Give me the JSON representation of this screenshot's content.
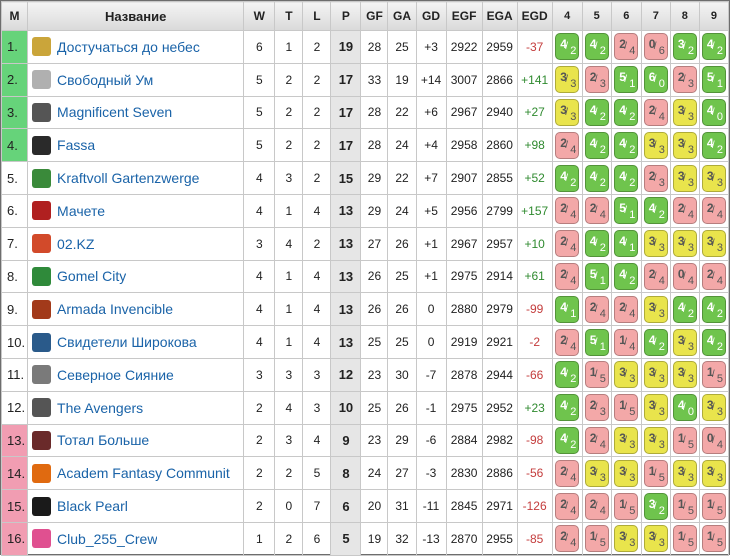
{
  "header": {
    "pos": "M",
    "name": "Название",
    "w": "W",
    "t": "T",
    "l": "L",
    "p": "P",
    "gf": "GF",
    "ga": "GA",
    "gd": "GD",
    "egf": "EGF",
    "ega": "EGA",
    "egd": "EGD",
    "rounds": [
      "4",
      "5",
      "6",
      "7",
      "8",
      "9"
    ]
  },
  "colors": {
    "promotion": "#66d37a",
    "relegation": "#f19db2",
    "cell_win": "#6fc44d",
    "cell_draw": "#e9e44c",
    "cell_loss": "#f3a8a8",
    "link": "#1a63a8"
  },
  "rows": [
    {
      "pos": "1.",
      "zone": "green",
      "logo": "laurel-logo-icon",
      "logo_color": "#caa53a",
      "name": "Достучаться до небес",
      "w": "6",
      "t": "1",
      "l": "2",
      "p": "19",
      "gf": "28",
      "ga": "25",
      "gd": "+3",
      "egf": "2922",
      "ega": "2959",
      "egd": "-37",
      "cells": [
        {
          "a": "4",
          "b": "2",
          "c": "g"
        },
        {
          "a": "4",
          "b": "2",
          "c": "g"
        },
        {
          "a": "2",
          "b": "4",
          "c": "r"
        },
        {
          "a": "0",
          "b": "6",
          "c": "r"
        },
        {
          "a": "3",
          "b": "2",
          "c": "g"
        },
        {
          "a": "4",
          "b": "2",
          "c": "g"
        }
      ]
    },
    {
      "pos": "2.",
      "zone": "green",
      "logo": "brain-logo-icon",
      "logo_color": "#b0b0b0",
      "name": "Свободный Ум",
      "w": "5",
      "t": "2",
      "l": "2",
      "p": "17",
      "gf": "33",
      "ga": "19",
      "gd": "+14",
      "egf": "3007",
      "ega": "2866",
      "egd": "+141",
      "cells": [
        {
          "a": "3",
          "b": "3",
          "c": "y"
        },
        {
          "a": "2",
          "b": "3",
          "c": "r"
        },
        {
          "a": "5",
          "b": "1",
          "c": "g"
        },
        {
          "a": "6",
          "b": "0",
          "c": "g"
        },
        {
          "a": "2",
          "b": "3",
          "c": "r"
        },
        {
          "a": "5",
          "b": "1",
          "c": "g"
        }
      ]
    },
    {
      "pos": "3.",
      "zone": "green",
      "logo": "group-photo-logo-icon",
      "logo_color": "#555555",
      "name": "Magnificent Seven",
      "w": "5",
      "t": "2",
      "l": "2",
      "p": "17",
      "gf": "28",
      "ga": "22",
      "gd": "+6",
      "egf": "2967",
      "ega": "2940",
      "egd": "+27",
      "cells": [
        {
          "a": "3",
          "b": "3",
          "c": "y"
        },
        {
          "a": "4",
          "b": "2",
          "c": "g"
        },
        {
          "a": "4",
          "b": "2",
          "c": "g"
        },
        {
          "a": "2",
          "b": "4",
          "c": "r"
        },
        {
          "a": "3",
          "b": "3",
          "c": "y"
        },
        {
          "a": "4",
          "b": "0",
          "c": "g"
        }
      ]
    },
    {
      "pos": "4.",
      "zone": "green",
      "logo": "fassa-logo-icon",
      "logo_color": "#2a2a2a",
      "name": "Fassa",
      "w": "5",
      "t": "2",
      "l": "2",
      "p": "17",
      "gf": "28",
      "ga": "24",
      "gd": "+4",
      "egf": "2958",
      "ega": "2860",
      "egd": "+98",
      "cells": [
        {
          "a": "2",
          "b": "4",
          "c": "r"
        },
        {
          "a": "4",
          "b": "2",
          "c": "g"
        },
        {
          "a": "4",
          "b": "2",
          "c": "g"
        },
        {
          "a": "3",
          "b": "3",
          "c": "y"
        },
        {
          "a": "3",
          "b": "3",
          "c": "y"
        },
        {
          "a": "4",
          "b": "2",
          "c": "g"
        }
      ]
    },
    {
      "pos": "5.",
      "zone": "plain",
      "logo": "gnome-logo-icon",
      "logo_color": "#3a8a3a",
      "name": "Kraftvoll Gartenzwerge",
      "w": "4",
      "t": "3",
      "l": "2",
      "p": "15",
      "gf": "29",
      "ga": "22",
      "gd": "+7",
      "egf": "2907",
      "ega": "2855",
      "egd": "+52",
      "cells": [
        {
          "a": "4",
          "b": "2",
          "c": "g"
        },
        {
          "a": "4",
          "b": "2",
          "c": "g"
        },
        {
          "a": "4",
          "b": "2",
          "c": "g"
        },
        {
          "a": "2",
          "b": "3",
          "c": "r"
        },
        {
          "a": "3",
          "b": "3",
          "c": "y"
        },
        {
          "a": "3",
          "b": "3",
          "c": "y"
        }
      ]
    },
    {
      "pos": "6.",
      "zone": "plain",
      "logo": "machete-logo-icon",
      "logo_color": "#b02020",
      "name": "Мачете",
      "w": "4",
      "t": "1",
      "l": "4",
      "p": "13",
      "gf": "29",
      "ga": "24",
      "gd": "+5",
      "egf": "2956",
      "ega": "2799",
      "egd": "+157",
      "cells": [
        {
          "a": "2",
          "b": "4",
          "c": "r"
        },
        {
          "a": "2",
          "b": "4",
          "c": "r"
        },
        {
          "a": "5",
          "b": "1",
          "c": "g"
        },
        {
          "a": "4",
          "b": "2",
          "c": "g"
        },
        {
          "a": "2",
          "b": "4",
          "c": "r"
        },
        {
          "a": "2",
          "b": "4",
          "c": "r"
        }
      ]
    },
    {
      "pos": "7.",
      "zone": "plain",
      "logo": "kz-logo-icon",
      "logo_color": "#d24a2a",
      "name": "02.KZ",
      "w": "3",
      "t": "4",
      "l": "2",
      "p": "13",
      "gf": "27",
      "ga": "26",
      "gd": "+1",
      "egf": "2967",
      "ega": "2957",
      "egd": "+10",
      "cells": [
        {
          "a": "2",
          "b": "4",
          "c": "r"
        },
        {
          "a": "4",
          "b": "2",
          "c": "g"
        },
        {
          "a": "4",
          "b": "1",
          "c": "g"
        },
        {
          "a": "3",
          "b": "3",
          "c": "y"
        },
        {
          "a": "3",
          "b": "3",
          "c": "y"
        },
        {
          "a": "3",
          "b": "3",
          "c": "y"
        }
      ]
    },
    {
      "pos": "8.",
      "zone": "plain",
      "logo": "gomel-logo-icon",
      "logo_color": "#2f8a3a",
      "name": "Gomel City",
      "w": "4",
      "t": "1",
      "l": "4",
      "p": "13",
      "gf": "26",
      "ga": "25",
      "gd": "+1",
      "egf": "2975",
      "ega": "2914",
      "egd": "+61",
      "cells": [
        {
          "a": "2",
          "b": "4",
          "c": "r"
        },
        {
          "a": "5",
          "b": "1",
          "c": "g"
        },
        {
          "a": "4",
          "b": "2",
          "c": "g"
        },
        {
          "a": "2",
          "b": "4",
          "c": "r"
        },
        {
          "a": "0",
          "b": "4",
          "c": "r"
        },
        {
          "a": "2",
          "b": "4",
          "c": "r"
        }
      ]
    },
    {
      "pos": "9.",
      "zone": "plain",
      "logo": "armada-logo-icon",
      "logo_color": "#a23a1a",
      "name": "Armada Invencible",
      "w": "4",
      "t": "1",
      "l": "4",
      "p": "13",
      "gf": "26",
      "ga": "26",
      "gd": "0",
      "egf": "2880",
      "ega": "2979",
      "egd": "-99",
      "cells": [
        {
          "a": "4",
          "b": "1",
          "c": "g"
        },
        {
          "a": "2",
          "b": "4",
          "c": "r"
        },
        {
          "a": "2",
          "b": "4",
          "c": "r"
        },
        {
          "a": "3",
          "b": "3",
          "c": "y"
        },
        {
          "a": "4",
          "b": "2",
          "c": "g"
        },
        {
          "a": "4",
          "b": "2",
          "c": "g"
        }
      ]
    },
    {
      "pos": "10.",
      "zone": "plain",
      "logo": "portrait-logo-icon",
      "logo_color": "#2a5a8a",
      "name": "Свидетели Широкова",
      "w": "4",
      "t": "1",
      "l": "4",
      "p": "13",
      "gf": "25",
      "ga": "25",
      "gd": "0",
      "egf": "2919",
      "ega": "2921",
      "egd": "-2",
      "cells": [
        {
          "a": "2",
          "b": "4",
          "c": "r"
        },
        {
          "a": "5",
          "b": "1",
          "c": "g"
        },
        {
          "a": "1",
          "b": "4",
          "c": "r"
        },
        {
          "a": "4",
          "b": "2",
          "c": "g"
        },
        {
          "a": "3",
          "b": "3",
          "c": "y"
        },
        {
          "a": "4",
          "b": "2",
          "c": "g"
        }
      ]
    },
    {
      "pos": "11.",
      "zone": "plain",
      "logo": "northern-lights-logo-icon",
      "logo_color": "#7a7a7a",
      "name": "Северное Сияние",
      "w": "3",
      "t": "3",
      "l": "3",
      "p": "12",
      "gf": "23",
      "ga": "30",
      "gd": "-7",
      "egf": "2878",
      "ega": "2944",
      "egd": "-66",
      "cells": [
        {
          "a": "4",
          "b": "2",
          "c": "g"
        },
        {
          "a": "1",
          "b": "5",
          "c": "r"
        },
        {
          "a": "3",
          "b": "3",
          "c": "y"
        },
        {
          "a": "3",
          "b": "3",
          "c": "y"
        },
        {
          "a": "3",
          "b": "3",
          "c": "y"
        },
        {
          "a": "1",
          "b": "5",
          "c": "r"
        }
      ]
    },
    {
      "pos": "12.",
      "zone": "plain",
      "logo": "avengers-logo-icon",
      "logo_color": "#555555",
      "name": "The Avengers",
      "w": "2",
      "t": "4",
      "l": "3",
      "p": "10",
      "gf": "25",
      "ga": "26",
      "gd": "-1",
      "egf": "2975",
      "ega": "2952",
      "egd": "+23",
      "cells": [
        {
          "a": "4",
          "b": "2",
          "c": "g"
        },
        {
          "a": "2",
          "b": "3",
          "c": "r"
        },
        {
          "a": "1",
          "b": "5",
          "c": "r"
        },
        {
          "a": "3",
          "b": "3",
          "c": "y"
        },
        {
          "a": "4",
          "b": "0",
          "c": "g"
        },
        {
          "a": "3",
          "b": "3",
          "c": "y"
        }
      ]
    },
    {
      "pos": "13.",
      "zone": "red",
      "logo": "total-more-logo-icon",
      "logo_color": "#6a2a2a",
      "name": "Тотал Больше",
      "w": "2",
      "t": "3",
      "l": "4",
      "p": "9",
      "gf": "23",
      "ga": "29",
      "gd": "-6",
      "egf": "2884",
      "ega": "2982",
      "egd": "-98",
      "cells": [
        {
          "a": "4",
          "b": "2",
          "c": "g"
        },
        {
          "a": "2",
          "b": "4",
          "c": "r"
        },
        {
          "a": "3",
          "b": "3",
          "c": "y"
        },
        {
          "a": "3",
          "b": "3",
          "c": "y"
        },
        {
          "a": "1",
          "b": "5",
          "c": "r"
        },
        {
          "a": "0",
          "b": "4",
          "c": "r"
        }
      ]
    },
    {
      "pos": "14.",
      "zone": "red",
      "logo": "afc-logo-icon",
      "logo_color": "#e06a10",
      "name": "Academ Fantasy Communit",
      "w": "2",
      "t": "2",
      "l": "5",
      "p": "8",
      "gf": "24",
      "ga": "27",
      "gd": "-3",
      "egf": "2830",
      "ega": "2886",
      "egd": "-56",
      "cells": [
        {
          "a": "2",
          "b": "4",
          "c": "r"
        },
        {
          "a": "3",
          "b": "3",
          "c": "y"
        },
        {
          "a": "3",
          "b": "3",
          "c": "y"
        },
        {
          "a": "1",
          "b": "5",
          "c": "r"
        },
        {
          "a": "3",
          "b": "3",
          "c": "y"
        },
        {
          "a": "3",
          "b": "3",
          "c": "y"
        }
      ]
    },
    {
      "pos": "15.",
      "zone": "red",
      "logo": "black-pearl-logo-icon",
      "logo_color": "#1a1a1a",
      "name": "Black Pearl",
      "w": "2",
      "t": "0",
      "l": "7",
      "p": "6",
      "gf": "20",
      "ga": "31",
      "gd": "-11",
      "egf": "2845",
      "ega": "2971",
      "egd": "-126",
      "cells": [
        {
          "a": "2",
          "b": "4",
          "c": "r"
        },
        {
          "a": "2",
          "b": "4",
          "c": "r"
        },
        {
          "a": "1",
          "b": "5",
          "c": "r"
        },
        {
          "a": "3",
          "b": "2",
          "c": "g"
        },
        {
          "a": "1",
          "b": "5",
          "c": "r"
        },
        {
          "a": "1",
          "b": "5",
          "c": "r"
        }
      ]
    },
    {
      "pos": "16.",
      "zone": "red",
      "logo": "club255-logo-icon",
      "logo_color": "#e05090",
      "name": "Club_255_Crew",
      "w": "1",
      "t": "2",
      "l": "6",
      "p": "5",
      "gf": "19",
      "ga": "32",
      "gd": "-13",
      "egf": "2870",
      "ega": "2955",
      "egd": "-85",
      "cells": [
        {
          "a": "2",
          "b": "4",
          "c": "r"
        },
        {
          "a": "1",
          "b": "5",
          "c": "r"
        },
        {
          "a": "3",
          "b": "3",
          "c": "y"
        },
        {
          "a": "3",
          "b": "3",
          "c": "y"
        },
        {
          "a": "1",
          "b": "5",
          "c": "r"
        },
        {
          "a": "1",
          "b": "5",
          "c": "r"
        }
      ]
    }
  ]
}
